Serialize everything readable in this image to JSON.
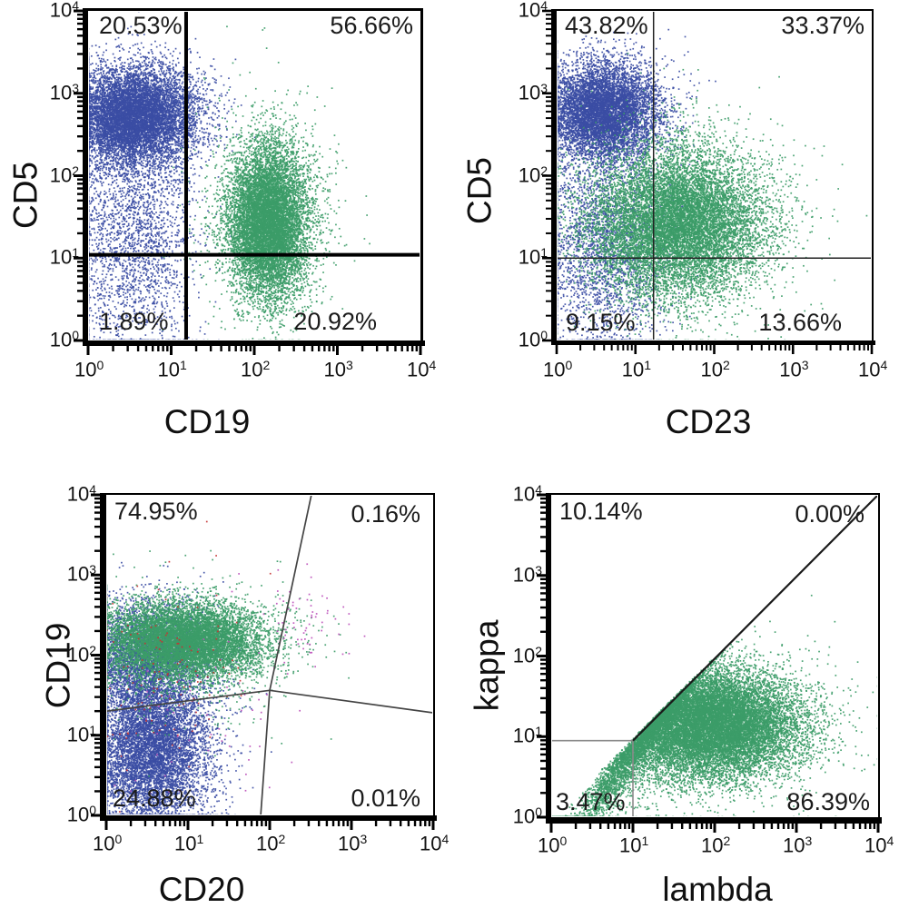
{
  "figure": {
    "kind": "flow-cytometry-dot-plot-panel",
    "background": "#ffffff",
    "text_color": "#1b1b1b",
    "point_colors": {
      "blue": "#3b4da4",
      "green": "#3c9c68",
      "red": "#c53333",
      "magenta": "#bc4fba"
    }
  },
  "chart_data": [
    {
      "id": "cd5-vs-cd19",
      "type": "scatter",
      "xlabel": "CD19",
      "ylabel": "CD5",
      "xscale": "log",
      "yscale": "log",
      "xlim": [
        1,
        10000
      ],
      "ylim": [
        1,
        10000
      ],
      "tick_exponents": [
        0,
        1,
        2,
        3,
        4
      ],
      "grid": false,
      "quadrants": {
        "upper_left": "20.53%",
        "upper_right": "56.66%",
        "lower_left": "1.89%",
        "lower_right": "20.92%"
      },
      "gates": [
        {
          "name": "vertical-quadrant-gate",
          "color": "#000000",
          "width": 4,
          "points_log": [
            [
              1.18,
              0
            ],
            [
              1.18,
              4
            ]
          ]
        },
        {
          "name": "horizontal-quadrant-gate",
          "color": "#000000",
          "width": 4,
          "points_log": [
            [
              0,
              1.04
            ],
            [
              4,
              1.04
            ]
          ]
        }
      ],
      "populations": [
        {
          "name": "CD5+ T cells",
          "color": "#3b4da4",
          "center_log": [
            0.55,
            2.72
          ],
          "sigma_log": [
            0.38,
            0.3
          ],
          "count": 9000
        },
        {
          "name": "CD5 dim scatter tail",
          "color": "#3b4da4",
          "center_log": [
            0.55,
            1.25
          ],
          "sigma_log": [
            0.38,
            0.75
          ],
          "count": 2400
        },
        {
          "name": "CD19+ B cells",
          "color": "#3c9c68",
          "center_log": [
            2.17,
            1.42
          ],
          "sigma_log": [
            0.24,
            0.46
          ],
          "count": 9500
        },
        {
          "name": "B cell halo",
          "color": "#3c9c68",
          "center_log": [
            2.15,
            1.65
          ],
          "sigma_log": [
            0.4,
            0.65
          ],
          "count": 800
        }
      ]
    },
    {
      "id": "cd5-vs-cd23",
      "type": "scatter",
      "xlabel": "CD23",
      "ylabel": "CD5",
      "xscale": "log",
      "yscale": "log",
      "xlim": [
        1,
        10000
      ],
      "ylim": [
        1,
        10000
      ],
      "tick_exponents": [
        0,
        1,
        2,
        3,
        4
      ],
      "grid": false,
      "quadrants": {
        "upper_left": "43.82%",
        "upper_right": "33.37%",
        "lower_left": "9.15%",
        "lower_right": "13.66%"
      },
      "gates": [
        {
          "name": "vertical-quadrant-gate",
          "color": "#222222",
          "width": 1.5,
          "points_log": [
            [
              1.23,
              0
            ],
            [
              1.23,
              4
            ]
          ]
        },
        {
          "name": "horizontal-quadrant-gate",
          "color": "#222222",
          "width": 1.5,
          "points_log": [
            [
              0,
              1.0
            ],
            [
              4,
              1.0
            ]
          ]
        }
      ],
      "populations": [
        {
          "name": "CD5+ T cells",
          "color": "#3b4da4",
          "center_log": [
            0.58,
            2.78
          ],
          "sigma_log": [
            0.37,
            0.3
          ],
          "count": 7500
        },
        {
          "name": "CD5 dim scatter tail",
          "color": "#3b4da4",
          "center_log": [
            0.6,
            1.15
          ],
          "sigma_log": [
            0.42,
            0.65
          ],
          "count": 2600
        },
        {
          "name": "CD23+ B cells",
          "color": "#3c9c68",
          "center_log": [
            1.55,
            1.42
          ],
          "sigma_log": [
            0.55,
            0.45
          ],
          "count": 11000
        },
        {
          "name": "B cell halo",
          "color": "#3c9c68",
          "center_log": [
            1.6,
            1.5
          ],
          "sigma_log": [
            0.75,
            0.65
          ],
          "count": 800
        }
      ]
    },
    {
      "id": "cd19-vs-cd20",
      "type": "scatter",
      "xlabel": "CD20",
      "ylabel": "CD19",
      "xscale": "log",
      "yscale": "log",
      "xlim": [
        1,
        10000
      ],
      "ylim": [
        1,
        10000
      ],
      "tick_exponents": [
        0,
        1,
        2,
        3,
        4
      ],
      "grid": false,
      "quadrants": {
        "upper_left": "74.95%",
        "upper_right": "0.16%",
        "lower_left": "24.88%",
        "lower_right": "0.01%"
      },
      "gates": [
        {
          "name": "near-horizontal-gate",
          "color": "#444444",
          "width": 1.7,
          "points_log": [
            [
              0,
              1.3
            ],
            [
              2.0,
              1.56
            ],
            [
              4,
              1.28
            ]
          ]
        },
        {
          "name": "near-vertical-gate",
          "color": "#444444",
          "width": 1.7,
          "points_log": [
            [
              1.89,
              0
            ],
            [
              2.0,
              1.56
            ],
            [
              2.51,
              4
            ]
          ]
        }
      ],
      "populations": [
        {
          "name": "CD19+ CD20 dim blue",
          "color": "#3b4da4",
          "center_log": [
            0.45,
            2.02
          ],
          "sigma_log": [
            0.42,
            0.33
          ],
          "count": 3600
        },
        {
          "name": "CD19- lymphocytes",
          "color": "#3b4da4",
          "center_log": [
            0.55,
            0.85
          ],
          "sigma_log": [
            0.36,
            0.5
          ],
          "count": 7500
        },
        {
          "name": "CD19+ B cells",
          "color": "#3c9c68",
          "center_log": [
            0.95,
            2.18
          ],
          "sigma_log": [
            0.5,
            0.24
          ],
          "count": 9000
        },
        {
          "name": "B cell halo",
          "color": "#3c9c68",
          "center_log": [
            0.9,
            2.0
          ],
          "sigma_log": [
            0.65,
            0.45
          ],
          "count": 600
        },
        {
          "name": "red events",
          "color": "#c53333",
          "center_log": [
            0.75,
            1.75
          ],
          "sigma_log": [
            0.55,
            0.6
          ],
          "count": 130
        },
        {
          "name": "CD20 bright magenta events",
          "color": "#bc4fba",
          "center_log": [
            2.45,
            2.35
          ],
          "sigma_log": [
            0.3,
            0.24
          ],
          "count": 60
        },
        {
          "name": "scattered magenta events",
          "color": "#bc4fba",
          "center_log": [
            1.3,
            1.1
          ],
          "sigma_log": [
            0.6,
            0.7
          ],
          "count": 60
        }
      ]
    },
    {
      "id": "kappa-vs-lambda",
      "type": "scatter",
      "xlabel": "lambda",
      "ylabel": "kappa",
      "xscale": "log",
      "yscale": "log",
      "xlim": [
        1,
        10000
      ],
      "ylim": [
        1,
        10000
      ],
      "tick_exponents": [
        0,
        1,
        2,
        3,
        4
      ],
      "grid": false,
      "quadrants": {
        "upper_left": "10.14%",
        "upper_right": "0.00%",
        "lower_left": "3.47%",
        "lower_right": "86.39%"
      },
      "gates": [
        {
          "name": "horizontal-gate-segment",
          "color": "#8a8a8a",
          "width": 1.6,
          "points_log": [
            [
              0,
              0.95
            ],
            [
              1,
              0.95
            ]
          ]
        },
        {
          "name": "vertical-gate-segment",
          "color": "#8a8a8a",
          "width": 1.6,
          "points_log": [
            [
              1,
              0
            ],
            [
              1,
              0.95
            ]
          ]
        },
        {
          "name": "diagonal-gate",
          "color": "#1a1a1a",
          "width": 2.2,
          "points_log": [
            [
              1,
              0.95
            ],
            [
              4,
              4
            ]
          ]
        }
      ],
      "populations": [
        {
          "name": "lambda-restricted B cells",
          "color": "#3c9c68",
          "center_log": [
            1.95,
            1.15
          ],
          "sigma_log": [
            0.55,
            0.33
          ],
          "count": 15000,
          "below_diagonal": true
        },
        {
          "name": "dim left tail",
          "color": "#3c9c68",
          "center_log": [
            0.85,
            1.0
          ],
          "sigma_log": [
            0.4,
            0.45
          ],
          "count": 1500,
          "below_diagonal": true
        },
        {
          "name": "sparse halo",
          "color": "#3c9c68",
          "center_log": [
            1.9,
            1.2
          ],
          "sigma_log": [
            0.8,
            0.55
          ],
          "count": 700,
          "below_diagonal": true
        }
      ]
    }
  ]
}
